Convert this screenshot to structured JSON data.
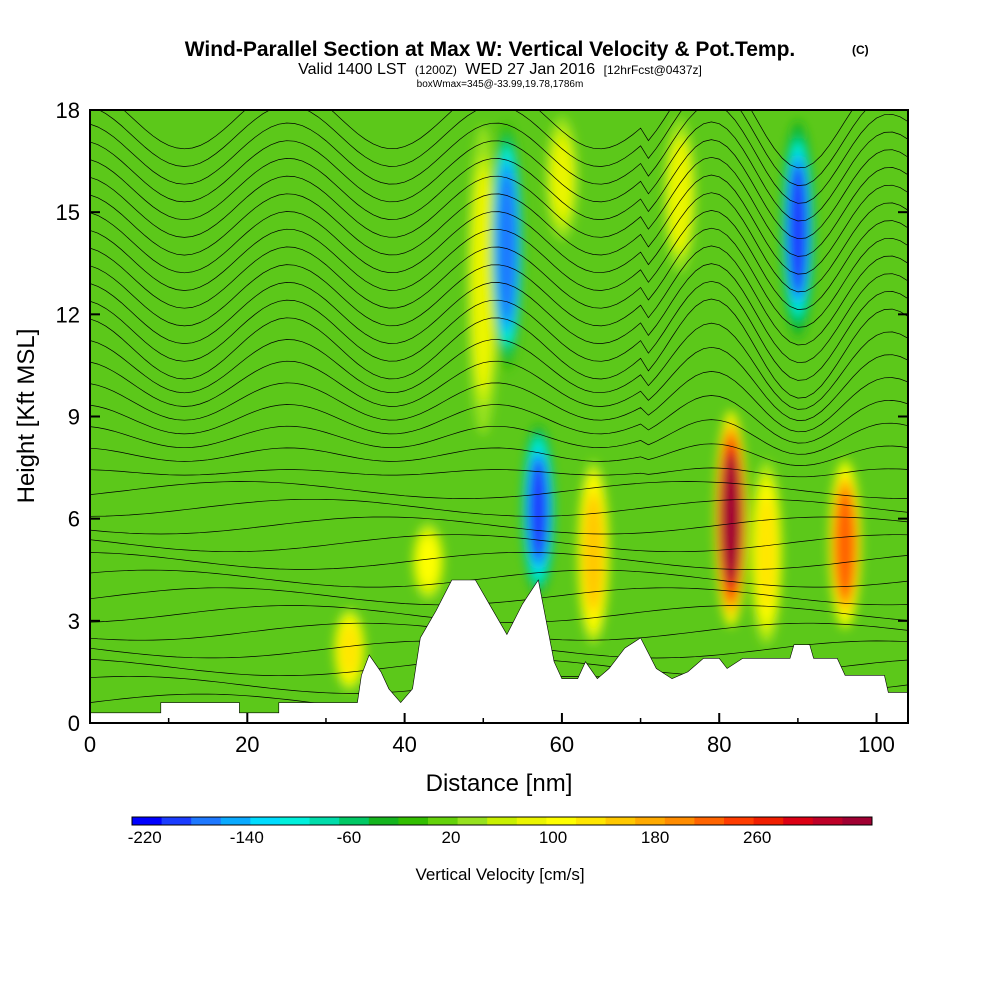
{
  "chart_data": {
    "type": "heatmap",
    "title": "Wind-Parallel Section at Max W: Vertical Velocity & Pot.Temp.",
    "title_mark": "(C)",
    "subtitle_main": "Valid 1400 LST",
    "subtitle_z": "(1200Z)",
    "subtitle_date": "WED 27 Jan 2016",
    "subtitle_fcst": "[12hrFcst@0437z]",
    "subtitle2": "boxWmax=345@-33.99,19.78,1786m",
    "xlabel": "Distance [nm]",
    "ylabel": "Height [Kft MSL]",
    "xlim": [
      0,
      104
    ],
    "ylim": [
      0,
      18
    ],
    "x_ticks": [
      "0",
      "20",
      "40",
      "60",
      "80",
      "100"
    ],
    "y_ticks": [
      "0",
      "3",
      "6",
      "9",
      "12",
      "15",
      "18"
    ],
    "colorbar": {
      "label": "Vertical Velocity [cm/s]",
      "range": [
        -230,
        350
      ],
      "ticks": [
        "-220",
        "-140",
        "-60",
        "20",
        "100",
        "180",
        "260"
      ],
      "colors": [
        "#0000ff",
        "#1a3cff",
        "#1e78ff",
        "#0aaaff",
        "#00dcff",
        "#00f0dc",
        "#00dcaa",
        "#00c864",
        "#14b41e",
        "#32be00",
        "#64d20a",
        "#96e11e",
        "#c8f000",
        "#ebf500",
        "#ffff00",
        "#ffe600",
        "#ffc800",
        "#ffaa00",
        "#ff8c00",
        "#ff6400",
        "#ff3c00",
        "#f01e00",
        "#dc0014",
        "#be0028",
        "#a00032"
      ]
    },
    "velocity_cells": [
      {
        "x": 33,
        "z0": 0.8,
        "z1": 3.5,
        "w": 120
      },
      {
        "x": 43,
        "z0": 3.5,
        "z1": 6.0,
        "w": 100
      },
      {
        "x": 50,
        "z0": 8.0,
        "z1": 18.0,
        "w": 90
      },
      {
        "x": 53,
        "z0": 10.0,
        "z1": 18.0,
        "w": -180
      },
      {
        "x": 57,
        "z0": 3.5,
        "z1": 9.0,
        "w": -200
      },
      {
        "x": 60,
        "z0": 14.0,
        "z1": 18.0,
        "w": 80
      },
      {
        "x": 64,
        "z0": 2.0,
        "z1": 8.0,
        "w": 150
      },
      {
        "x": 75,
        "z0": 13.0,
        "z1": 18.0,
        "w": 90
      },
      {
        "x": 81.5,
        "z0": 2.5,
        "z1": 9.5,
        "w": 345
      },
      {
        "x": 86,
        "z0": 2.0,
        "z1": 8.0,
        "w": 130
      },
      {
        "x": 90,
        "z0": 11.0,
        "z1": 18.0,
        "w": -190
      },
      {
        "x": 96,
        "z0": 2.5,
        "z1": 8.0,
        "w": 230
      }
    ],
    "terrain": [
      {
        "x": 0,
        "h": 0.3
      },
      {
        "x": 9,
        "h": 0.3
      },
      {
        "x": 9,
        "h": 0.6
      },
      {
        "x": 19,
        "h": 0.6
      },
      {
        "x": 19,
        "h": 0.3
      },
      {
        "x": 24,
        "h": 0.3
      },
      {
        "x": 24,
        "h": 0.6
      },
      {
        "x": 34,
        "h": 0.6
      },
      {
        "x": 34.5,
        "h": 1.4
      },
      {
        "x": 35.5,
        "h": 2.0
      },
      {
        "x": 37,
        "h": 1.5
      },
      {
        "x": 38,
        "h": 1.0
      },
      {
        "x": 39.5,
        "h": 0.6
      },
      {
        "x": 41,
        "h": 1.0
      },
      {
        "x": 42,
        "h": 2.5
      },
      {
        "x": 44,
        "h": 3.3
      },
      {
        "x": 46,
        "h": 4.2
      },
      {
        "x": 49,
        "h": 4.2
      },
      {
        "x": 51,
        "h": 3.4
      },
      {
        "x": 53,
        "h": 2.6
      },
      {
        "x": 55,
        "h": 3.5
      },
      {
        "x": 57,
        "h": 4.2
      },
      {
        "x": 58,
        "h": 3.0
      },
      {
        "x": 59,
        "h": 1.8
      },
      {
        "x": 60,
        "h": 1.3
      },
      {
        "x": 62,
        "h": 1.3
      },
      {
        "x": 63,
        "h": 1.8
      },
      {
        "x": 64.5,
        "h": 1.3
      },
      {
        "x": 66,
        "h": 1.6
      },
      {
        "x": 68,
        "h": 2.2
      },
      {
        "x": 70,
        "h": 2.5
      },
      {
        "x": 72,
        "h": 1.6
      },
      {
        "x": 74,
        "h": 1.3
      },
      {
        "x": 76,
        "h": 1.5
      },
      {
        "x": 78,
        "h": 1.9
      },
      {
        "x": 80,
        "h": 1.9
      },
      {
        "x": 81,
        "h": 1.6
      },
      {
        "x": 83,
        "h": 1.9
      },
      {
        "x": 89,
        "h": 1.9
      },
      {
        "x": 89.5,
        "h": 2.3
      },
      {
        "x": 91.5,
        "h": 2.3
      },
      {
        "x": 92,
        "h": 1.9
      },
      {
        "x": 95,
        "h": 1.9
      },
      {
        "x": 96,
        "h": 1.4
      },
      {
        "x": 101,
        "h": 1.4
      },
      {
        "x": 101.5,
        "h": 0.9
      },
      {
        "x": 104,
        "h": 0.9
      }
    ]
  }
}
